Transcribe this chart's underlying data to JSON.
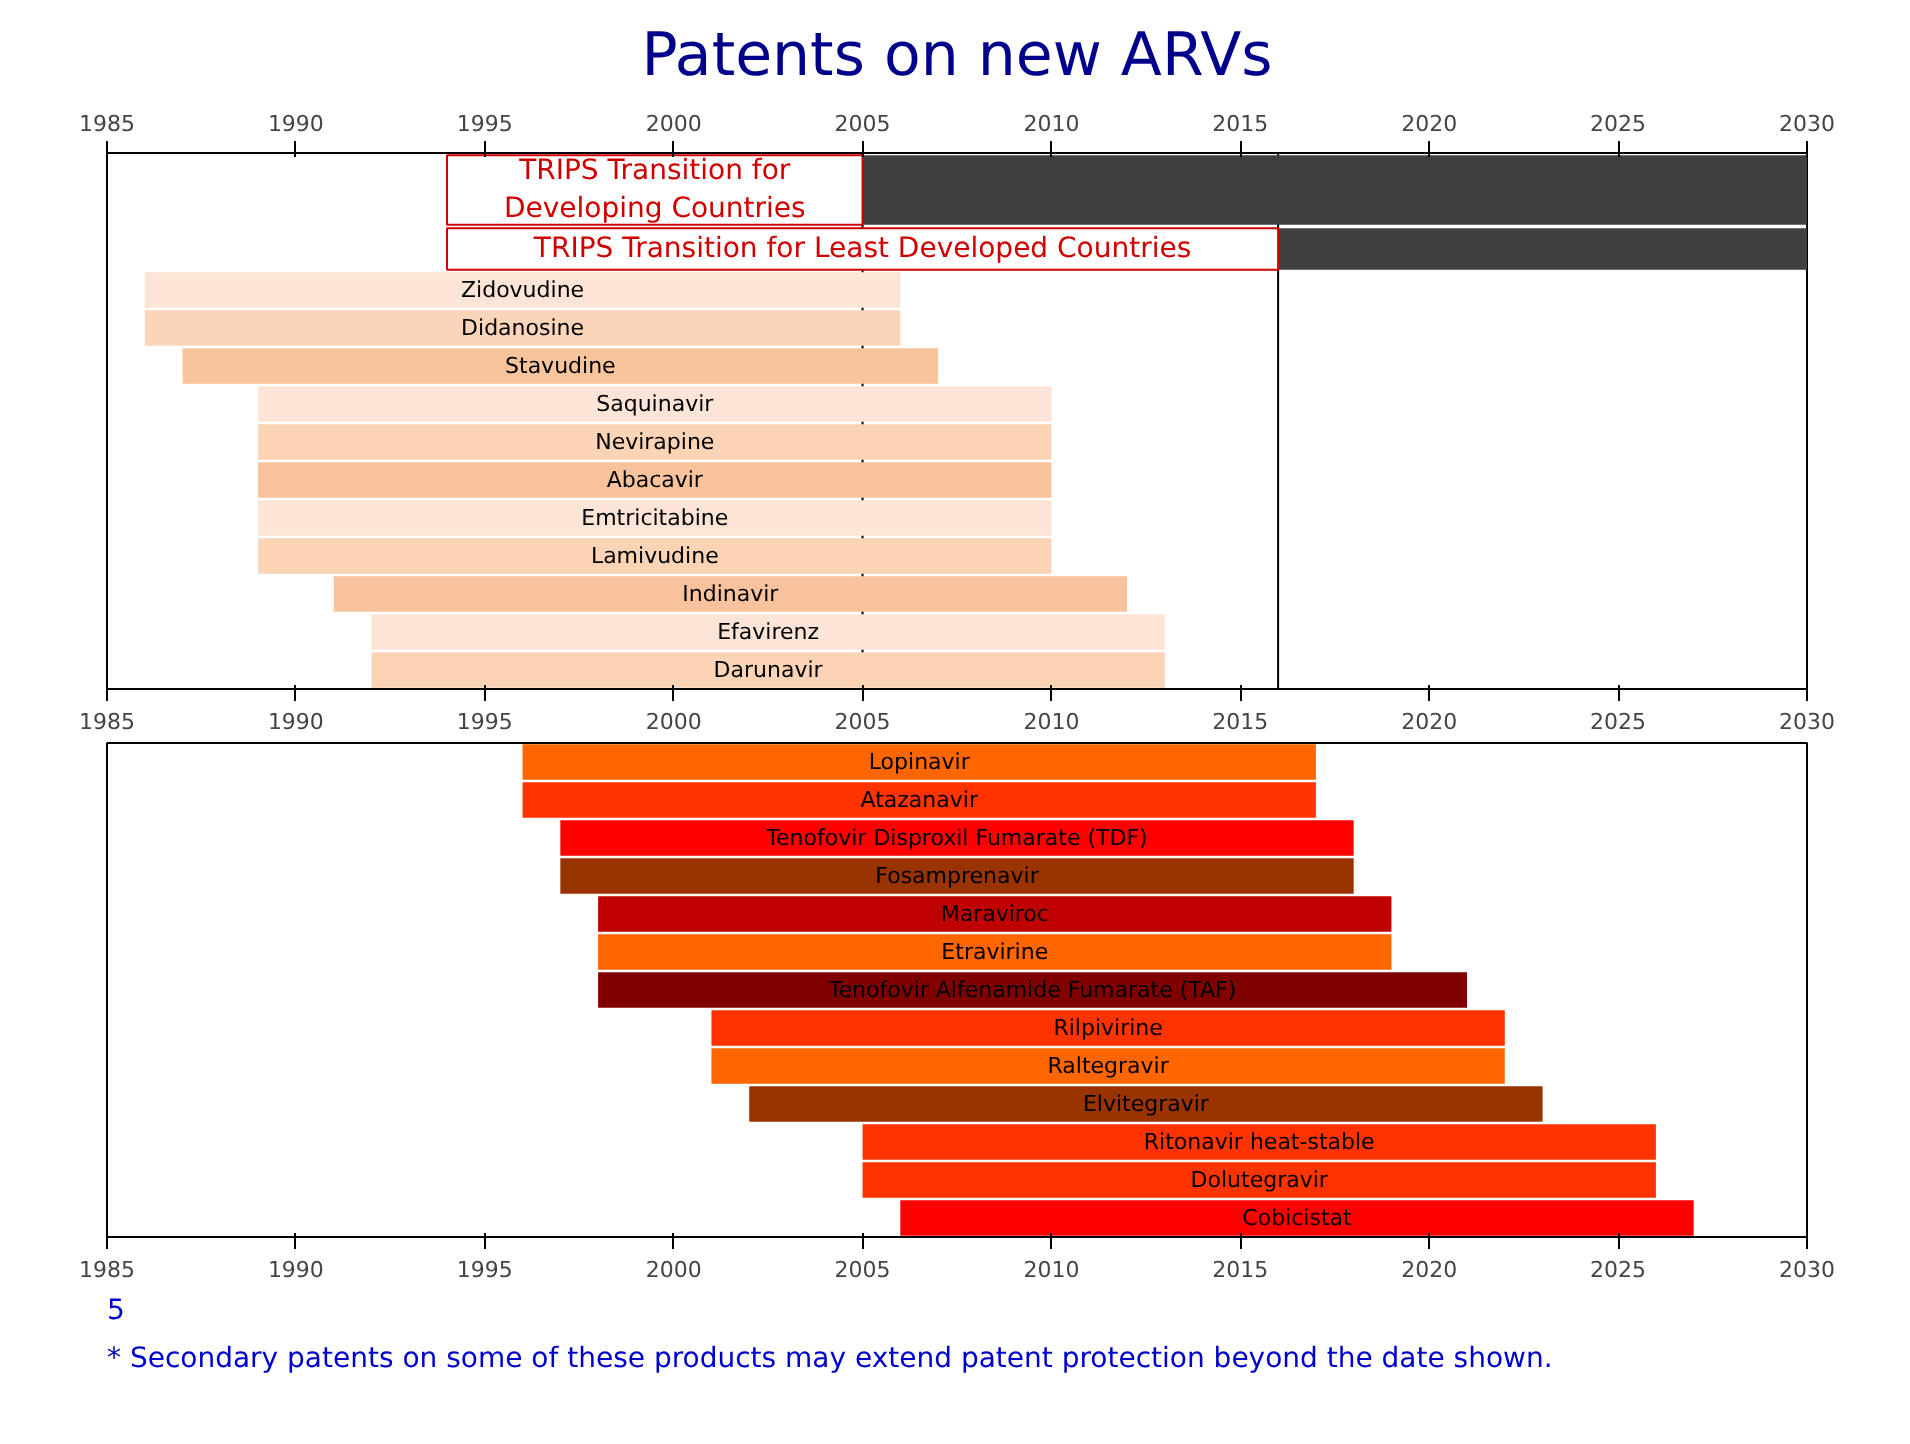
{
  "chart_data": [
    {
      "type": "bar",
      "orientation": "horizontal",
      "title": "Patents on new ARVs",
      "categories": [
        "TRIPS Transition for Developing Countries",
        "TRIPS Transition for Least Developed Countries",
        "Zidovudine",
        "Didanosine",
        "Stavudine",
        "Saquinavir",
        "Nevirapine",
        "Abacavir",
        "Emtricitabine",
        "Lamivudine",
        "Indinavir",
        "Efavirenz",
        "Darunavir"
      ],
      "series": [
        {
          "color": "#404040",
          "base": [
            2005,
            2016,
            null,
            null,
            null,
            null,
            null,
            null,
            null,
            null,
            null,
            null,
            null
          ],
          "values": [
            25,
            14,
            null,
            null,
            null,
            null,
            null,
            null,
            null,
            null,
            null,
            null,
            null
          ]
        },
        {
          "colors": [
            "#ffffff",
            "#ffffff",
            "#fce4d6",
            "#fbd5b9",
            "#f8c49c",
            "#fce4d6",
            "#fbd3b5",
            "#f8c39c",
            "#fce4d6",
            "#fbd3b5",
            "#f8c39c",
            "#fce4d6",
            "#fbd3b5"
          ],
          "base": [
            1994,
            1994,
            1986,
            1986,
            1987,
            1989,
            1989,
            1989,
            1989,
            1989,
            1991,
            1992,
            1992
          ],
          "values": [
            11,
            22,
            20,
            20,
            20,
            21,
            21,
            21,
            21,
            21,
            21,
            21,
            21
          ]
        }
      ],
      "xlim": [
        1985,
        2030
      ],
      "xticks": [
        1985,
        1990,
        1995,
        2000,
        2005,
        2010,
        2015,
        2020,
        2025,
        2030
      ],
      "x2lim": [
        1985,
        2030
      ],
      "x2ticks": [
        1985,
        1990,
        1995,
        2000,
        2005,
        2010,
        2015,
        2020,
        2025,
        2030
      ],
      "ref_lines": [
        {
          "axis": "x",
          "value": 2005
        },
        {
          "axis": "x",
          "value": 2016
        }
      ]
    },
    {
      "type": "bar",
      "orientation": "horizontal",
      "categories": [
        "Lopinavir",
        "Atazanavir",
        "Tenofovir Disproxil Fumarate (TDF)",
        "Fosamprenavir",
        "Maraviroc",
        "Etravirine",
        "Tenofovir Alfenamide Fumarate (TAF)",
        "Rilpivirine",
        "Raltegravir",
        "Elvitegravir",
        "Ritonavir heat-stable",
        "Dolutegravir",
        "Cobicistat"
      ],
      "series": [
        {
          "colors": [
            "#ff6600",
            "#ff3300",
            "#ff0000",
            "#993300",
            "#c00000",
            "#ff6600",
            "#800000",
            "#ff3300",
            "#ff6600",
            "#993300",
            "#ff3300",
            "#ff3300",
            "#ff0000"
          ],
          "base": [
            1996,
            1996,
            1997,
            1997,
            1998,
            1998,
            1998,
            2001,
            2001,
            2002,
            2005,
            2005,
            2006
          ],
          "values": [
            21,
            21,
            21,
            21,
            21,
            21,
            23,
            21,
            21,
            21,
            21,
            21,
            21
          ]
        }
      ],
      "xlim": [
        1985,
        2030
      ],
      "xticks": [
        1985,
        1990,
        1995,
        2000,
        2005,
        2010,
        2015,
        2020,
        2025,
        2030
      ],
      "annotations": [
        "* Secondary patents on some of these products may extend patent protection beyond the date shown.",
        "5"
      ]
    }
  ]
}
